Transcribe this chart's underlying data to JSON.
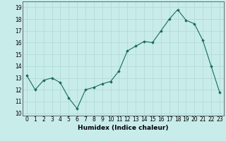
{
  "x": [
    0,
    1,
    2,
    3,
    4,
    5,
    6,
    7,
    8,
    9,
    10,
    11,
    12,
    13,
    14,
    15,
    16,
    17,
    18,
    19,
    20,
    21,
    22,
    23
  ],
  "y": [
    13.2,
    12.0,
    12.8,
    13.0,
    12.6,
    11.3,
    10.4,
    12.0,
    12.2,
    12.5,
    12.7,
    13.6,
    15.3,
    15.7,
    16.1,
    16.0,
    17.0,
    18.0,
    18.8,
    17.9,
    17.6,
    16.2,
    14.0,
    11.8
  ],
  "line_color": "#1a6b5a",
  "bg_color": "#c8ecea",
  "grid_color": "#b0d8d4",
  "xlabel": "Humidex (Indice chaleur)",
  "ylabel_ticks": [
    10,
    11,
    12,
    13,
    14,
    15,
    16,
    17,
    18,
    19
  ],
  "xlim": [
    -0.5,
    23.5
  ],
  "ylim": [
    9.8,
    19.5
  ],
  "axis_fontsize": 6.5,
  "tick_fontsize": 5.5
}
